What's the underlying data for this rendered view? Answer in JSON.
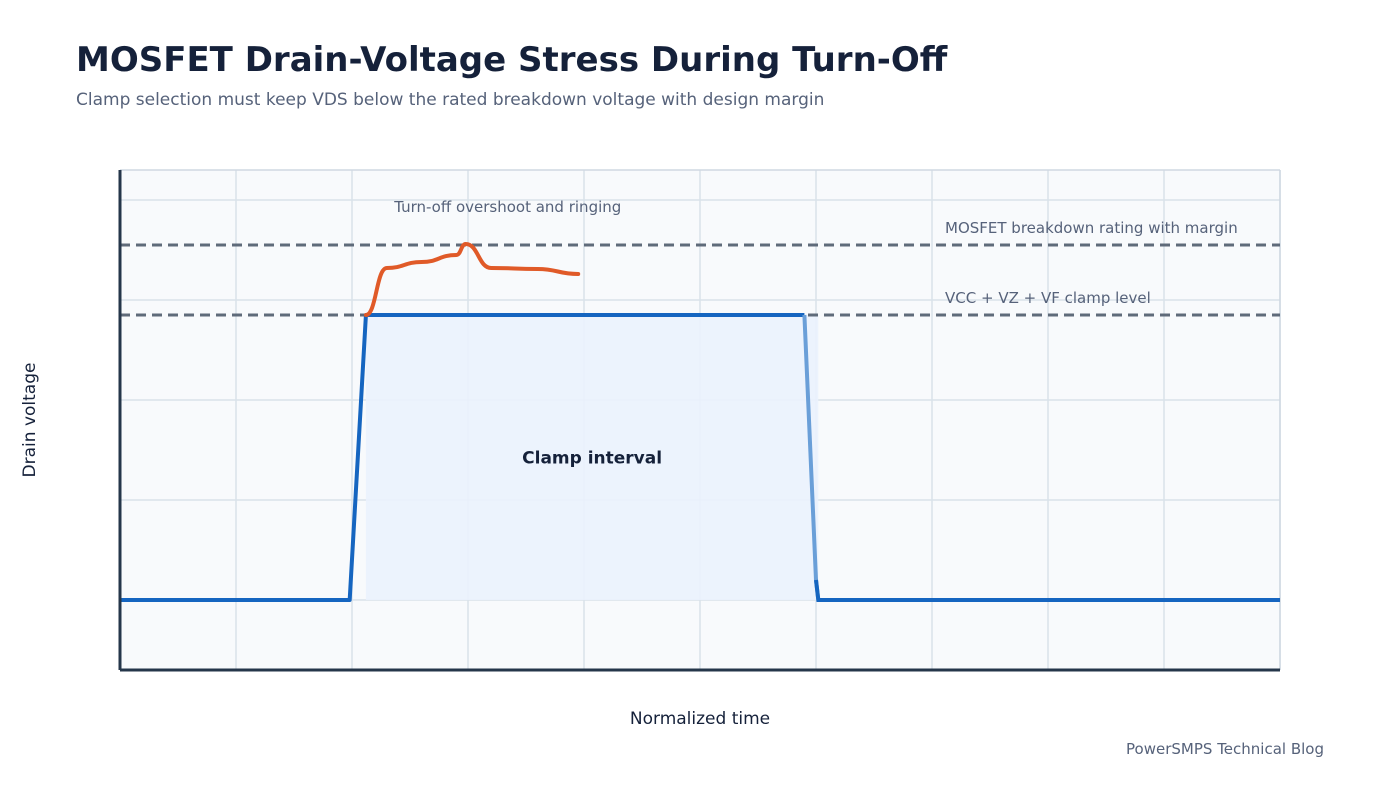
{
  "header": {
    "title": "MOSFET Drain-Voltage Stress During Turn-Off",
    "subtitle": "Clamp selection must keep VDS below the rated breakdown voltage with design margin"
  },
  "footer": {
    "source": "PowerSMPS Technical Blog"
  },
  "colors": {
    "drain_trace": "#1565c0",
    "drain_trace_fall": "#6a9fd8",
    "overshoot": "#e05a28",
    "reference": "#5f6b7a",
    "clamp_fill": "#eaf2fd",
    "plot_bg": "#f8fafc",
    "grid": "#d9e2ea",
    "axis": "#25364a"
  },
  "chart_data": {
    "type": "line",
    "title": "MOSFET Drain-Voltage Stress During Turn-Off",
    "xlabel": "Normalized time",
    "ylabel": "Drain voltage",
    "xlim": [
      0,
      10
    ],
    "ylim": [
      -0.7,
      4.3
    ],
    "grid": true,
    "tick_labels_shown": false,
    "series": [
      {
        "role": "drain-voltage",
        "points": [
          [
            0,
            0
          ],
          [
            1.98,
            0
          ],
          [
            2.12,
            2.85
          ],
          [
            5.88,
            2.85
          ],
          [
            5.9,
            2.85
          ],
          [
            5.9,
            2.85
          ],
          [
            6.0,
            0.2
          ],
          [
            6.02,
            0
          ],
          [
            10,
            0
          ]
        ]
      },
      {
        "role": "overshoot",
        "points": [
          [
            2.12,
            2.85
          ],
          [
            2.3,
            3.32
          ],
          [
            2.6,
            3.38
          ],
          [
            2.9,
            3.45
          ],
          [
            2.98,
            3.56
          ],
          [
            3.2,
            3.32
          ],
          [
            3.6,
            3.31
          ],
          [
            3.95,
            3.26
          ]
        ]
      }
    ],
    "reference_lines": [
      {
        "y": 3.55,
        "label": "MOSFET breakdown rating with margin"
      },
      {
        "y": 2.85,
        "label": "VCC + VZ + VF clamp level"
      }
    ],
    "shaded_regions": [
      {
        "x0": 2.12,
        "x1": 6.02,
        "y0": 0,
        "y1": 2.85,
        "label": "Clamp interval"
      }
    ],
    "annotations": [
      {
        "text": "Turn-off overshoot and ringing",
        "x": 3.7,
        "y": 3.9
      }
    ]
  }
}
